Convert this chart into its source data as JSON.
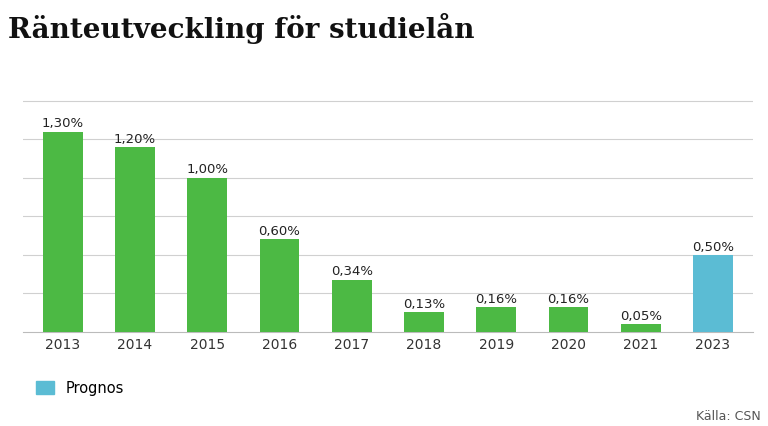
{
  "title": "Ränteutveckling för studielån",
  "categories": [
    "2013",
    "2014",
    "2015",
    "2016",
    "2017",
    "2018",
    "2019",
    "2020",
    "2021",
    "2023"
  ],
  "values": [
    1.3,
    1.2,
    1.0,
    0.6,
    0.34,
    0.13,
    0.16,
    0.16,
    0.05,
    0.5
  ],
  "labels": [
    "1,30%",
    "1,20%",
    "1,00%",
    "0,60%",
    "0,34%",
    "0,13%",
    "0,16%",
    "0,16%",
    "0,05%",
    "0,50%"
  ],
  "bar_colors": [
    "#4cb944",
    "#4cb944",
    "#4cb944",
    "#4cb944",
    "#4cb944",
    "#4cb944",
    "#4cb944",
    "#4cb944",
    "#4cb944",
    "#5bbcd4"
  ],
  "green_color": "#4cb944",
  "blue_color": "#5bbcd4",
  "background_color": "#ffffff",
  "grid_color": "#d0d0d0",
  "title_fontsize": 20,
  "label_fontsize": 9.5,
  "tick_fontsize": 10,
  "ylim": [
    0,
    1.55
  ],
  "source_text": "Källa: CSN",
  "legend_label": "Prognos"
}
